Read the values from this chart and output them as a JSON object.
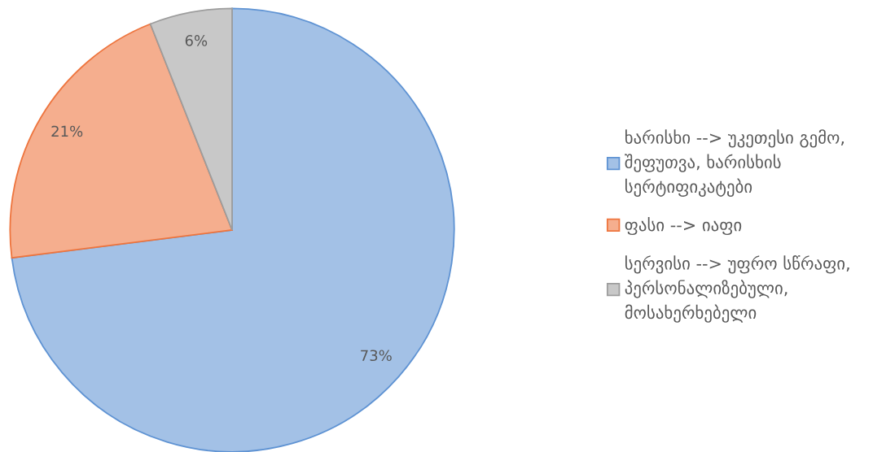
{
  "chart_data": {
    "type": "pie",
    "categories": [
      "ხარისხი --> უკეთესი გემო, შეფუთვა, ხარისხის სერტიფიკატები",
      "ფასი --> იაფი",
      "სერვისი --> უფრო სწრაფი, პერსონალიზებული, მოსახერხებელი"
    ],
    "values": [
      73,
      21,
      6
    ],
    "colors": [
      "#a3c1e6",
      "#f5ae8e",
      "#c8c8c8"
    ],
    "value_labels": [
      "73%",
      "21%",
      "6%"
    ],
    "legend": "right"
  }
}
